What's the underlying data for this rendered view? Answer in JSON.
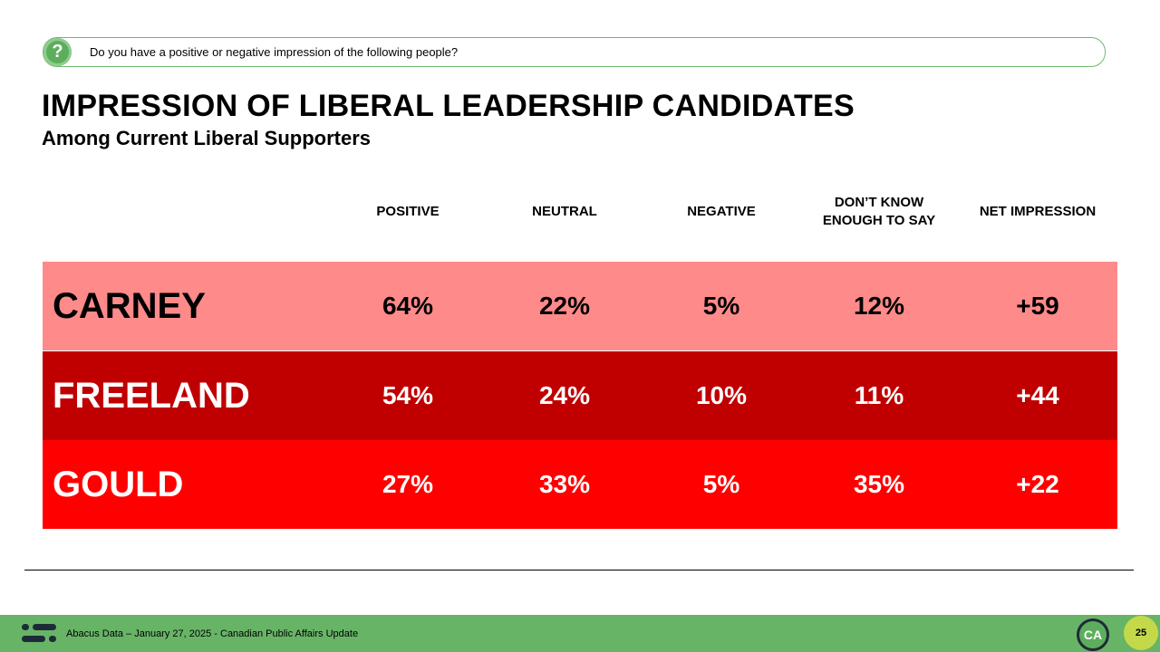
{
  "question": {
    "icon": "?",
    "text": "Do you have a positive or negative impression of the following people?"
  },
  "header": {
    "title": "IMPRESSION OF LIBERAL LEADERSHIP CANDIDATES",
    "subtitle": "Among Current Liberal Supporters"
  },
  "table": {
    "columns": [
      "POSITIVE",
      "NEUTRAL",
      "NEGATIVE",
      "DON’T KNOW ENOUGH TO SAY",
      "NET IMPRESSION"
    ],
    "rows": [
      {
        "name": "CARNEY",
        "cells": [
          "64%",
          "22%",
          "5%",
          "12%",
          "+59"
        ]
      },
      {
        "name": "FREELAND",
        "cells": [
          "54%",
          "24%",
          "10%",
          "11%",
          "+44"
        ]
      },
      {
        "name": "GOULD",
        "cells": [
          "27%",
          "33%",
          "5%",
          "35%",
          "+22"
        ]
      }
    ]
  },
  "footer": {
    "source": "Abacus Data – January 27, 2025 - Canadian Public Affairs Update",
    "logo": "CA",
    "page": "25"
  }
}
